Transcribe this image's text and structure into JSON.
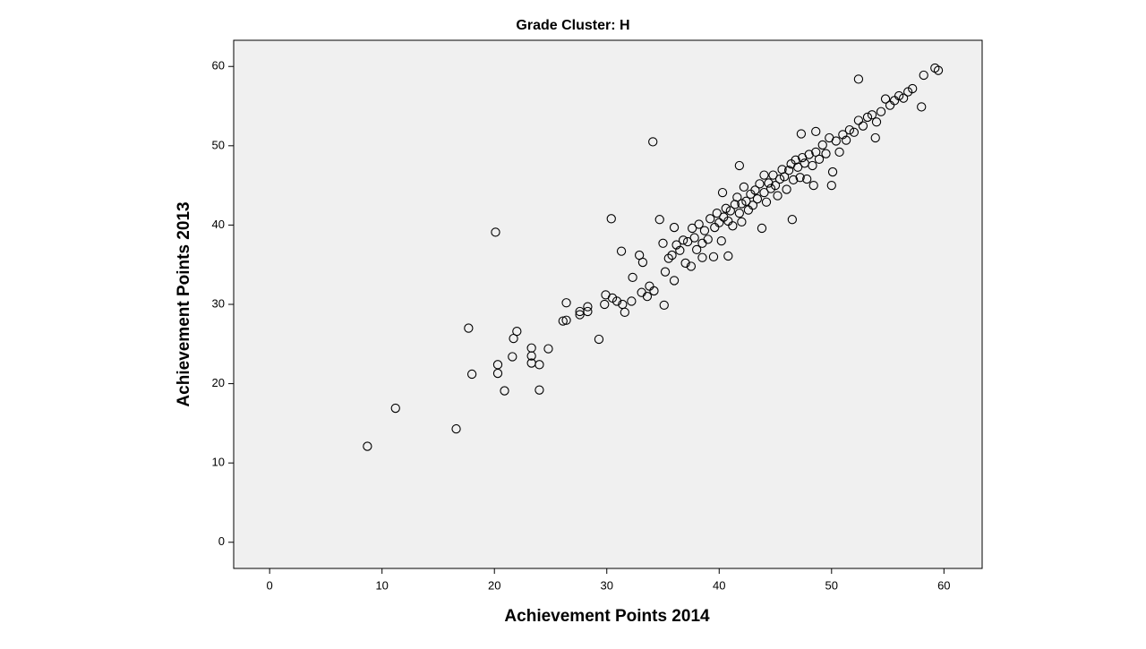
{
  "chart_data": {
    "type": "scatter",
    "title": "Grade Cluster: H",
    "x_label": "Achievement Points 2014",
    "y_label": "Achievement Points 2013",
    "xlim": [
      -3.2,
      63.4
    ],
    "ylim": [
      -3.3,
      63.3
    ],
    "xticks": [
      0,
      10,
      20,
      30,
      40,
      50,
      60
    ],
    "yticks": [
      0,
      10,
      20,
      30,
      40,
      50,
      60
    ],
    "grid": false,
    "color": "#000000",
    "background": "#f0f0f0",
    "x": [
      8.7,
      11.2,
      16.6,
      17.7,
      18.0,
      20.1,
      20.3,
      20.3,
      20.9,
      21.7,
      22.0,
      21.6,
      23.3,
      23.3,
      23.3,
      24.0,
      24.0,
      24.8,
      26.1,
      26.4,
      26.4,
      27.6,
      27.6,
      28.3,
      28.3,
      29.3,
      29.8,
      29.9,
      30.4,
      30.5,
      30.9,
      31.3,
      31.4,
      31.6,
      32.2,
      32.3,
      32.9,
      33.2,
      33.1,
      33.6,
      33.8,
      34.1,
      34.2,
      34.7,
      35.1,
      52.4,
      58.2,
      59.2,
      59.5,
      58.0,
      53.9,
      50.0,
      48.4,
      40.3,
      41.8,
      47.3,
      48.6,
      35.0,
      35.2,
      35.5,
      35.8,
      36.0,
      36.2,
      36.5,
      36.8,
      37.0,
      37.2,
      37.5,
      37.6,
      37.8,
      38.0,
      38.2,
      38.5,
      38.7,
      39.0,
      39.2,
      39.5,
      39.6,
      39.8,
      40.0,
      40.2,
      40.4,
      40.6,
      40.8,
      41.0,
      41.2,
      41.4,
      41.6,
      41.8,
      42.0,
      42.2,
      42.4,
      42.6,
      42.8,
      43.0,
      43.2,
      43.4,
      43.6,
      43.8,
      44.0,
      44.2,
      44.4,
      44.6,
      44.8,
      45.0,
      45.2,
      45.4,
      45.6,
      45.8,
      46.0,
      46.2,
      46.4,
      46.6,
      46.8,
      47.0,
      47.2,
      47.4,
      47.6,
      47.8,
      48.0,
      48.3,
      48.6,
      48.9,
      49.2,
      49.5,
      49.8,
      50.1,
      50.4,
      50.7,
      51.0,
      51.3,
      51.6,
      52.0,
      52.4,
      52.8,
      53.2,
      53.6,
      54.0,
      54.4,
      54.8,
      55.2,
      55.6,
      56.0,
      56.4,
      56.8,
      57.2,
      36.0,
      38.5,
      40.8,
      46.5,
      42.0,
      44.0
    ],
    "y": [
      12.1,
      16.9,
      14.3,
      27.0,
      21.2,
      39.1,
      22.4,
      21.3,
      19.1,
      25.7,
      26.6,
      23.4,
      24.5,
      23.5,
      22.6,
      22.4,
      19.2,
      24.4,
      27.9,
      30.2,
      28.0,
      29.1,
      28.7,
      29.7,
      29.1,
      25.6,
      30.0,
      31.2,
      40.8,
      30.8,
      30.4,
      36.7,
      30.0,
      29.0,
      30.4,
      33.4,
      36.2,
      35.3,
      31.5,
      31.0,
      32.3,
      50.5,
      31.7,
      40.7,
      29.9,
      58.4,
      58.9,
      59.8,
      59.5,
      54.9,
      51.0,
      45.0,
      45.0,
      44.1,
      47.5,
      51.5,
      51.8,
      37.7,
      34.1,
      35.8,
      36.2,
      33.0,
      37.5,
      36.8,
      38.1,
      35.2,
      37.9,
      34.8,
      39.6,
      38.4,
      36.9,
      40.1,
      37.7,
      39.3,
      38.2,
      40.8,
      36.0,
      39.7,
      41.5,
      40.3,
      38.0,
      41.0,
      42.1,
      40.5,
      41.8,
      39.9,
      42.6,
      43.5,
      41.5,
      42.7,
      44.8,
      43.0,
      41.9,
      43.9,
      42.5,
      44.4,
      43.3,
      45.2,
      39.6,
      44.1,
      42.9,
      45.3,
      44.6,
      46.3,
      45.0,
      43.7,
      45.8,
      47.0,
      46.1,
      44.5,
      46.9,
      47.7,
      45.7,
      48.2,
      47.3,
      46.0,
      48.5,
      47.8,
      45.8,
      48.9,
      47.5,
      49.2,
      48.3,
      50.1,
      49.0,
      51.0,
      46.7,
      50.6,
      49.2,
      51.4,
      50.7,
      52.0,
      51.7,
      53.2,
      52.5,
      53.6,
      53.9,
      53.0,
      54.3,
      55.9,
      55.1,
      55.7,
      56.3,
      56.0,
      56.8,
      57.2,
      39.7,
      35.9,
      36.1,
      40.7,
      40.4,
      46.3
    ]
  }
}
